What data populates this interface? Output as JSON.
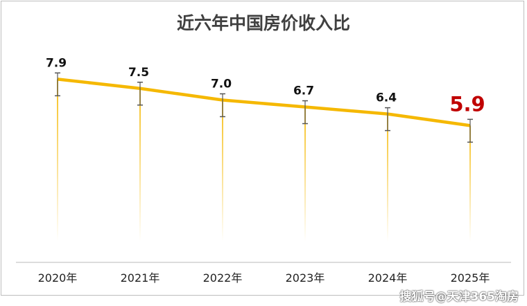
{
  "chart_data": {
    "type": "line",
    "title": "近六年中国房价收入比",
    "categories": [
      "2020年",
      "2021年",
      "2022年",
      "2023年",
      "2024年",
      "2025年"
    ],
    "values": [
      7.9,
      7.5,
      7.0,
      6.7,
      6.4,
      5.9
    ],
    "ylim": [
      0,
      10
    ],
    "grid": false,
    "line_color": "#f5b800",
    "highlight_color": "#c00000"
  },
  "watermark": "搜狐号@天津365淘房"
}
